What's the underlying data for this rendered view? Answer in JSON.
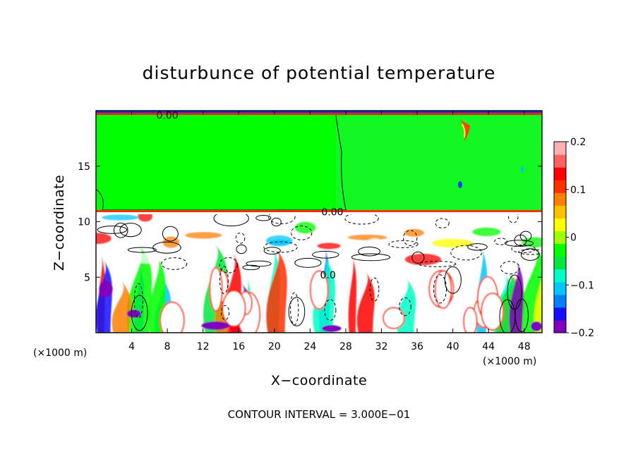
{
  "chart_data": {
    "type": "heatmap",
    "title": "disturbunce of potential temperature",
    "xlabel": "X−coordinate",
    "ylabel": "Z−coordinate",
    "x_unit": "(×1000 m)",
    "z_unit": "(×1000 m)",
    "xlim": [
      0,
      50
    ],
    "zlim": [
      0,
      20
    ],
    "x_ticks": [
      "4",
      "8",
      "12",
      "16",
      "20",
      "24",
      "28",
      "32",
      "36",
      "40",
      "44",
      "48"
    ],
    "x_tick_values": [
      4,
      8,
      12,
      16,
      20,
      24,
      28,
      32,
      36,
      40,
      44,
      48
    ],
    "z_ticks": [
      "5",
      "10",
      "15"
    ],
    "z_tick_values": [
      5,
      10,
      15
    ],
    "colorbar": {
      "range": [
        -0.2,
        0.2
      ],
      "tick_labels": [
        "0.2",
        "0.1",
        "0",
        "−0.1",
        "−0.2"
      ],
      "tick_values": [
        0.2,
        0.1,
        0,
        -0.1,
        -0.2
      ],
      "colors": [
        "#7f00bf",
        "#1010ff",
        "#0080ff",
        "#00c8ff",
        "#00ffc8",
        "#00e840",
        "#00ff00",
        "#a0ff00",
        "#ffff00",
        "#ffc000",
        "#ff8000",
        "#ff3000",
        "#ff0000",
        "#ff6060",
        "#ffb0b0"
      ]
    },
    "contour_labels": [
      {
        "text": "0.00",
        "x": 8.0,
        "z": 19.6
      },
      {
        "text": "0.00",
        "x": 26.5,
        "z": 10.9
      },
      {
        "text": "0.0",
        "x": 26.0,
        "z": 5.2
      }
    ],
    "contour_interval_text": "CONTOUR INTERVAL = 3.000E−01",
    "upper_layer": {
      "z_range": [
        10.5,
        20
      ],
      "value": 0,
      "description_color": "#00ff00"
    },
    "lower_layer": {
      "z_range": [
        0,
        10.5
      ]
    }
  }
}
